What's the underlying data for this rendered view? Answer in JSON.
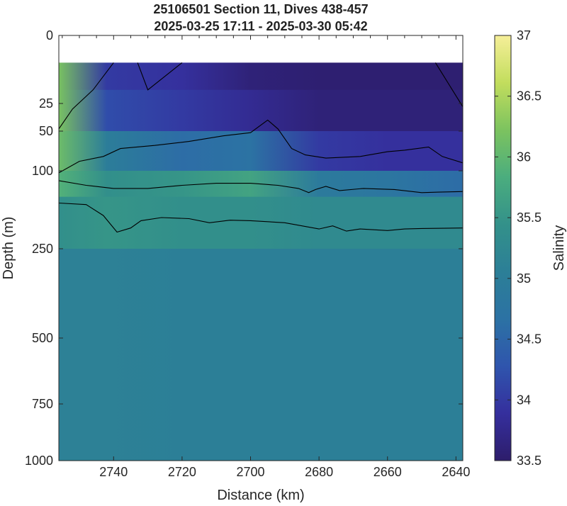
{
  "chart_data": {
    "type": "heatmap",
    "title": [
      "25106501 Section 11, Dives 438-457",
      "2025-03-25 17:11 - 2025-03-30 05:42"
    ],
    "xlabel": "Distance (km)",
    "ylabel": "Depth (m)",
    "colorbar_label": "Salinity",
    "x_range": [
      2756,
      2638
    ],
    "x_reversed": true,
    "x_ticks": [
      2740,
      2720,
      2700,
      2680,
      2660,
      2640
    ],
    "y_ticks": [
      0,
      25,
      50,
      100,
      250,
      500,
      750,
      1000
    ],
    "y_scale": "piecewise (stretched upper ocean)",
    "y_reversed": true,
    "data_top_depth": 10,
    "color_range": [
      33.5,
      37
    ],
    "colorbar_ticks": [
      33.5,
      34,
      34.5,
      35,
      35.5,
      36,
      36.5,
      37
    ],
    "colormap": [
      "#2d1d6b",
      "#352f9d",
      "#2f55ad",
      "#2c72a4",
      "#2c7f97",
      "#33918a",
      "#4bad7e",
      "#7cc35f",
      "#c2dd5d",
      "#f6ef99"
    ],
    "grid": false,
    "legend": "none",
    "contour_color": "#000000",
    "field": {
      "depth_layers": [
        {
          "depth_range": [
            10,
            20
          ],
          "salinity": {
            "2756": 36.2,
            "2742": 34.0,
            "2720": 33.9,
            "2700": 33.6,
            "2680": 33.55,
            "2660": 33.55,
            "2640": 33.55
          }
        },
        {
          "depth_range": [
            20,
            50
          ],
          "salinity": {
            "2756": 36.2,
            "2742": 34.2,
            "2720": 34.0,
            "2700": 33.8,
            "2680": 33.6,
            "2660": 33.6,
            "2640": 33.6
          }
        },
        {
          "depth_range": [
            50,
            100
          ],
          "salinity": {
            "2756": 36.1,
            "2742": 35.0,
            "2720": 34.6,
            "2700": 34.7,
            "2680": 34.0,
            "2660": 33.9,
            "2640": 33.9
          }
        },
        {
          "depth_range": [
            100,
            150
          ],
          "salinity": {
            "2756": 35.9,
            "2742": 35.4,
            "2720": 35.5,
            "2700": 35.7,
            "2680": 34.9,
            "2660": 34.8,
            "2640": 34.6
          }
        },
        {
          "depth_range": [
            150,
            250
          ],
          "salinity": {
            "2756": 35.4,
            "2742": 35.5,
            "2720": 35.4,
            "2700": 35.4,
            "2680": 35.3,
            "2660": 35.3,
            "2640": 35.3
          }
        },
        {
          "depth_range": [
            250,
            1000
          ],
          "salinity": {
            "2756": 35.1,
            "2742": 35.1,
            "2720": 35.05,
            "2700": 35.05,
            "2680": 35.05,
            "2660": 35.05,
            "2640": 35.05
          }
        }
      ],
      "contours": [
        {
          "points": [
            [
              2756,
              48
            ],
            [
              2752,
              30
            ],
            [
              2746,
              20
            ],
            [
              2740,
              10
            ]
          ]
        },
        {
          "points": [
            [
              2733,
              10
            ],
            [
              2730,
              20
            ],
            [
              2720,
              10
            ]
          ]
        },
        {
          "points": [
            [
              2756,
              104
            ],
            [
              2750,
              88
            ],
            [
              2743,
              82
            ],
            [
              2738,
              72
            ],
            [
              2728,
              68
            ],
            [
              2718,
              63
            ],
            [
              2708,
              56
            ],
            [
              2700,
              52
            ],
            [
              2695,
              40
            ],
            [
              2692,
              48
            ],
            [
              2688,
              72
            ],
            [
              2684,
              80
            ],
            [
              2678,
              84
            ],
            [
              2668,
              82
            ],
            [
              2660,
              76
            ],
            [
              2655,
              74
            ],
            [
              2648,
              70
            ],
            [
              2644,
              82
            ],
            [
              2638,
              90
            ]
          ]
        },
        {
          "points": [
            [
              2646,
              10
            ],
            [
              2638,
              28
            ]
          ]
        },
        {
          "points": [
            [
              2756,
              119
            ],
            [
              2748,
              128
            ],
            [
              2740,
              134
            ],
            [
              2730,
              134
            ],
            [
              2720,
              128
            ],
            [
              2710,
              124
            ],
            [
              2700,
              124
            ],
            [
              2692,
              128
            ],
            [
              2686,
              134
            ],
            [
              2683,
              142
            ],
            [
              2681,
              136
            ],
            [
              2678,
              130
            ],
            [
              2674,
              138
            ],
            [
              2667,
              134
            ],
            [
              2658,
              136
            ],
            [
              2650,
              142
            ],
            [
              2645,
              141
            ],
            [
              2638,
              140
            ]
          ]
        },
        {
          "points": [
            [
              2756,
              162
            ],
            [
              2748,
              165
            ],
            [
              2743,
              186
            ],
            [
              2739,
              218
            ],
            [
              2735,
              210
            ],
            [
              2732,
              196
            ],
            [
              2726,
              190
            ],
            [
              2718,
              192
            ],
            [
              2712,
              200
            ],
            [
              2706,
              195
            ],
            [
              2700,
              196
            ],
            [
              2690,
              200
            ],
            [
              2680,
              212
            ],
            [
              2676,
              206
            ],
            [
              2672,
              216
            ],
            [
              2668,
              212
            ],
            [
              2660,
              215
            ],
            [
              2655,
              212
            ],
            [
              2650,
              211
            ],
            [
              2638,
              210
            ]
          ]
        }
      ]
    }
  }
}
